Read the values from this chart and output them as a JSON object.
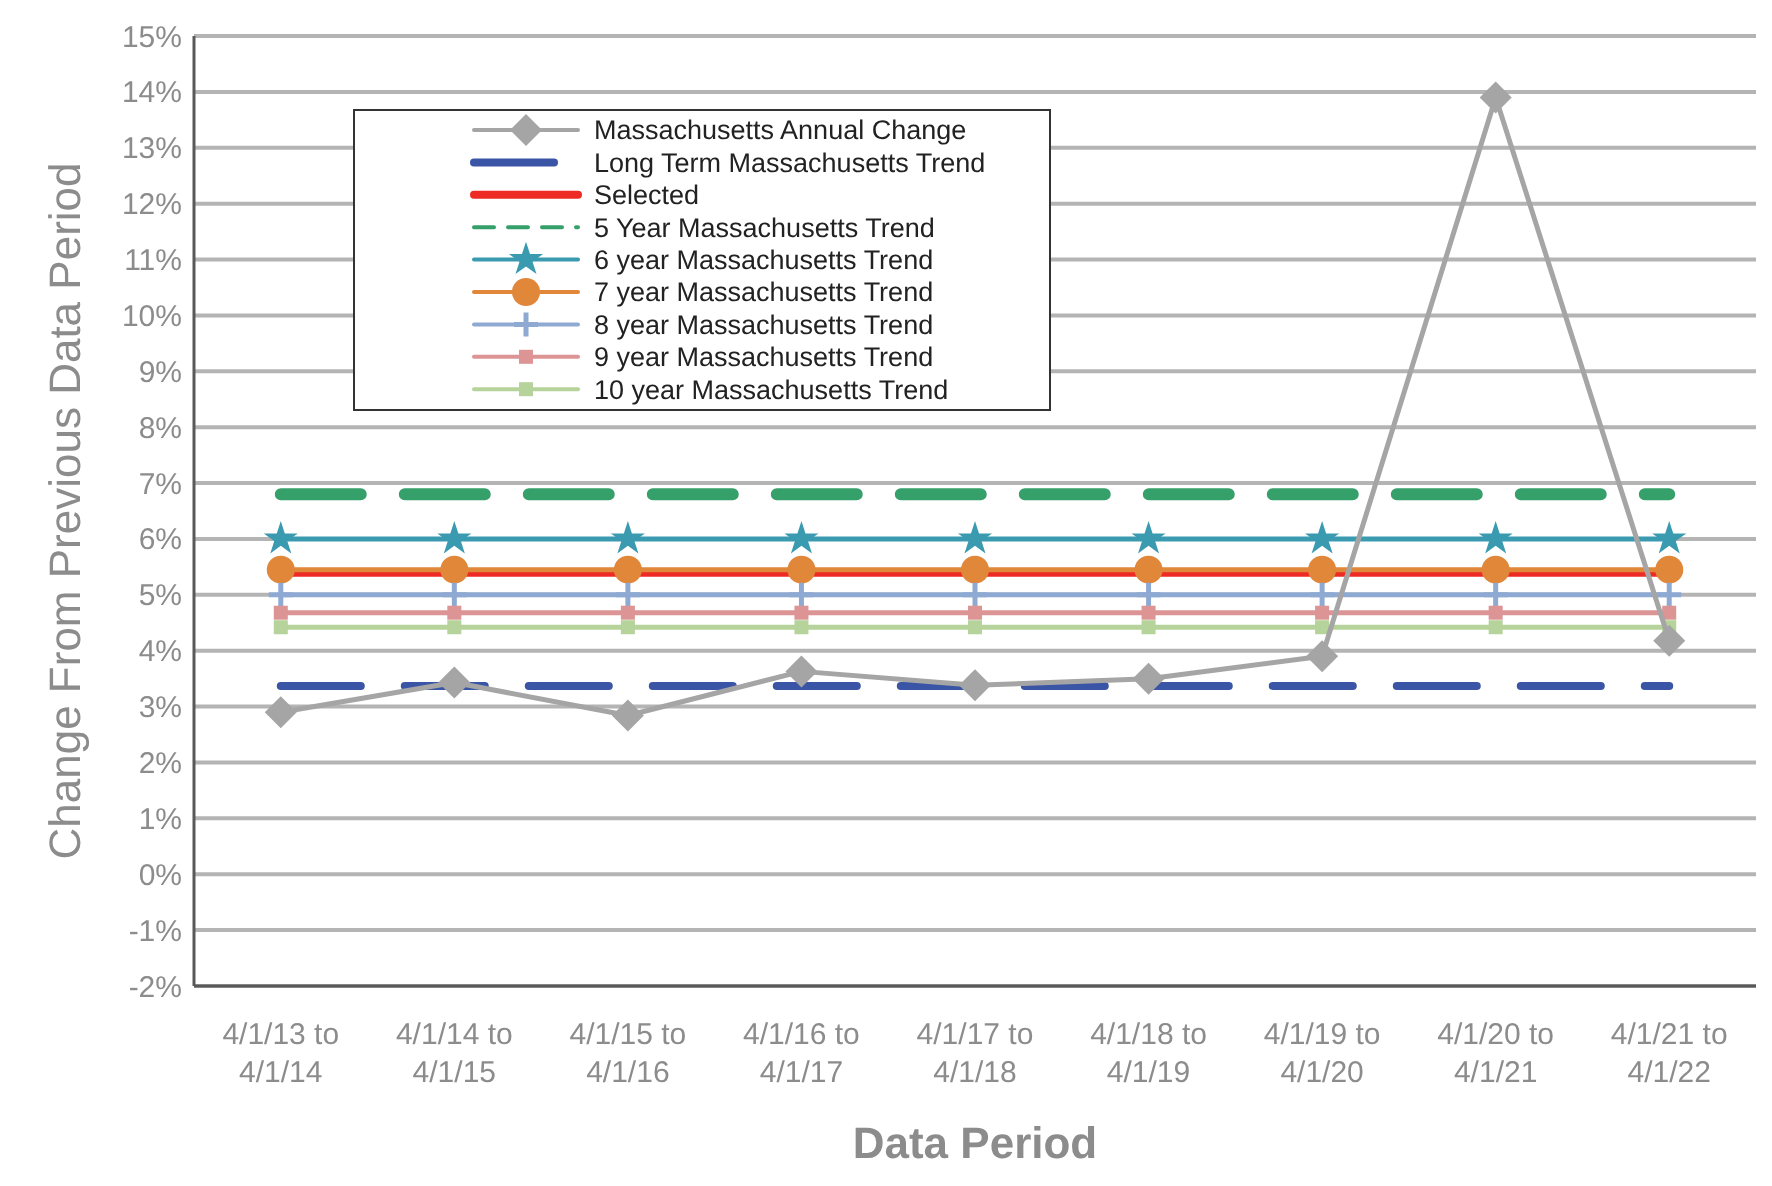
{
  "chart_data": {
    "type": "line",
    "xlabel": "Data Period",
    "ylabel": "Change From Previous Data Period",
    "categories": [
      "4/1/13 to\n4/1/14",
      "4/1/14 to\n4/1/15",
      "4/1/15 to\n4/1/16",
      "4/1/16 to\n4/1/17",
      "4/1/17 to\n4/1/18",
      "4/1/18 to\n4/1/19",
      "4/1/19 to\n4/1/20",
      "4/1/20 to\n4/1/21",
      "4/1/21 to\n4/1/22"
    ],
    "ylim": [
      -2,
      15
    ],
    "yticks": [
      {
        "value": -2,
        "label": "-2%"
      },
      {
        "value": -1,
        "label": "-1%"
      },
      {
        "value": 0,
        "label": "0%"
      },
      {
        "value": 1,
        "label": "1%"
      },
      {
        "value": 2,
        "label": "2%"
      },
      {
        "value": 3,
        "label": "3%"
      },
      {
        "value": 4,
        "label": "4%"
      },
      {
        "value": 5,
        "label": "5%"
      },
      {
        "value": 6,
        "label": "6%"
      },
      {
        "value": 7,
        "label": "7%"
      },
      {
        "value": 8,
        "label": "8%"
      },
      {
        "value": 9,
        "label": "9%"
      },
      {
        "value": 10,
        "label": "10%"
      },
      {
        "value": 11,
        "label": "11%"
      },
      {
        "value": 12,
        "label": "12%"
      },
      {
        "value": 13,
        "label": "13%"
      },
      {
        "value": 14,
        "label": "14%"
      },
      {
        "value": 15,
        "label": "15%"
      }
    ],
    "grid": "y",
    "legend": "top left",
    "series": [
      {
        "name": "Massachusetts Annual Change",
        "color": "#a5a5a5",
        "marker": "diamond",
        "line_style": "solid",
        "values": [
          2.9,
          3.43,
          2.84,
          3.63,
          3.38,
          3.5,
          3.9,
          13.9,
          4.18
        ]
      },
      {
        "name": "Long Term Massachusetts Trend",
        "color": "#3a55a6",
        "marker": "none",
        "line_style": "dashed",
        "values": [
          3.37,
          3.37,
          3.37,
          3.37,
          3.37,
          3.37,
          3.37,
          3.37,
          3.37
        ]
      },
      {
        "name": "Selected",
        "color": "#ee2a24",
        "marker": "none",
        "line_style": "solid",
        "values": [
          5.37,
          5.37,
          5.37,
          5.37,
          5.37,
          5.37,
          5.37,
          5.37,
          5.37
        ]
      },
      {
        "name": "5 Year Massachusetts Trend",
        "color": "#36a06a",
        "marker": "none",
        "line_style": "dashed",
        "values": [
          6.8,
          6.8,
          6.8,
          6.8,
          6.8,
          6.8,
          6.8,
          6.8,
          6.8
        ]
      },
      {
        "name": "6 year Massachusetts Trend",
        "color": "#3a9ab0",
        "marker": "star",
        "line_style": "solid",
        "values": [
          6.0,
          6.0,
          6.0,
          6.0,
          6.0,
          6.0,
          6.0,
          6.0,
          6.0
        ]
      },
      {
        "name": "7 year Massachusetts Trend",
        "color": "#e0873a",
        "marker": "circle",
        "line_style": "solid",
        "values": [
          5.45,
          5.45,
          5.45,
          5.45,
          5.45,
          5.45,
          5.45,
          5.45,
          5.45
        ]
      },
      {
        "name": "8 year Massachusetts Trend",
        "color": "#8faad2",
        "marker": "cross",
        "line_style": "solid",
        "values": [
          5.0,
          5.0,
          5.0,
          5.0,
          5.0,
          5.0,
          5.0,
          5.0,
          5.0
        ]
      },
      {
        "name": "9 year Massachusetts Trend",
        "color": "#dc9494",
        "marker": "square",
        "line_style": "solid",
        "values": [
          4.68,
          4.68,
          4.68,
          4.68,
          4.68,
          4.68,
          4.68,
          4.68,
          4.68
        ]
      },
      {
        "name": "10 year Massachusetts Trend",
        "color": "#b5d39a",
        "marker": "square",
        "line_style": "solid",
        "values": [
          4.42,
          4.42,
          4.42,
          4.42,
          4.42,
          4.42,
          4.42,
          4.42,
          4.42
        ]
      }
    ]
  }
}
